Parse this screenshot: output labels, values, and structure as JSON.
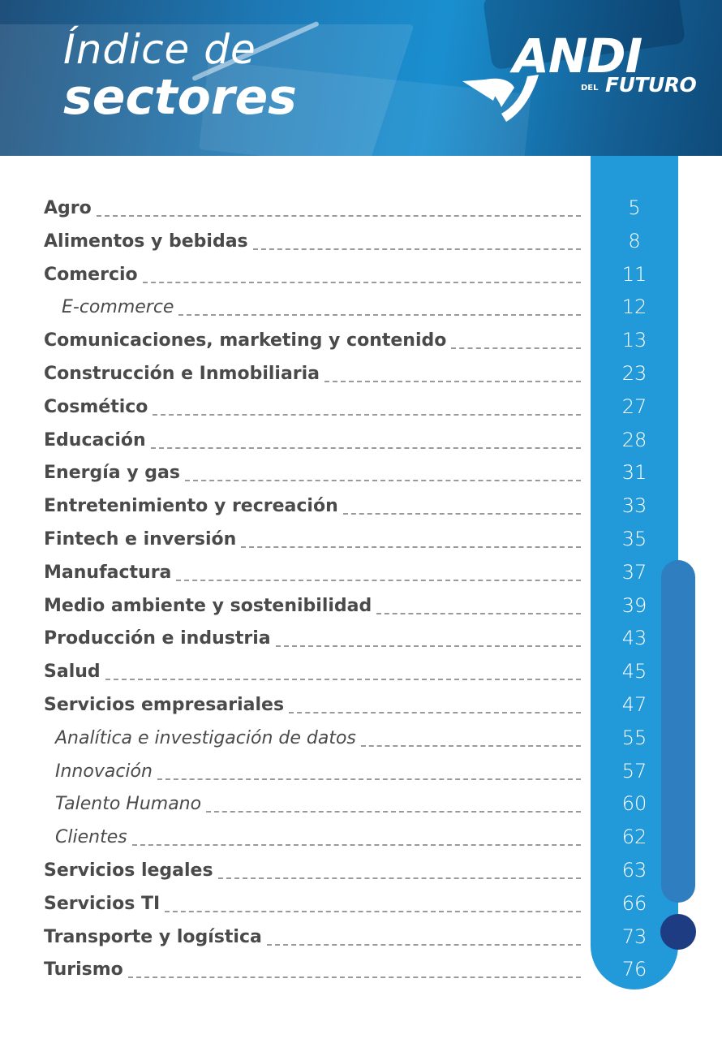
{
  "header": {
    "title_line1": "Índice de",
    "title_line2": "sectores",
    "logo": {
      "andi": "ANDI",
      "del": "DEL",
      "futuro": "FUTURO"
    }
  },
  "colors": {
    "column_blue": "#2299d8",
    "accent_blue": "#2f7ec0",
    "dot_navy": "#1e3c82",
    "text_gray": "#4a4a4a"
  },
  "entries": [
    {
      "label": "Agro",
      "page": "5",
      "sub": false
    },
    {
      "label": "Alimentos y bebidas",
      "page": "8",
      "sub": false
    },
    {
      "label": "Comercio",
      "page": "11",
      "sub": false
    },
    {
      "label": "E-commerce",
      "page": "12",
      "sub": true
    },
    {
      "label": "Comunicaciones, marketing y contenido",
      "page": "13",
      "sub": false
    },
    {
      "label": "Construcción e Inmobiliaria",
      "page": "23",
      "sub": false
    },
    {
      "label": "Cosmético",
      "page": "27",
      "sub": false
    },
    {
      "label": "Educación",
      "page": "28",
      "sub": false
    },
    {
      "label": "Energía y gas",
      "page": "31",
      "sub": false
    },
    {
      "label": "Entretenimiento y recreación",
      "page": "33",
      "sub": false
    },
    {
      "label": "Fintech e inversión",
      "page": "35",
      "sub": false
    },
    {
      "label": "Manufactura",
      "page": "37",
      "sub": false
    },
    {
      "label": "Medio ambiente y sostenibilidad",
      "page": "39",
      "sub": false
    },
    {
      "label": "Producción e industria",
      "page": "43",
      "sub": false
    },
    {
      "label": "Salud",
      "page": "45",
      "sub": false
    },
    {
      "label": "Servicios empresariales",
      "page": "47",
      "sub": false
    },
    {
      "label": "Analítica e investigación de datos",
      "page": "55",
      "sub": true
    },
    {
      "label": "Innovación",
      "page": "57",
      "sub": true
    },
    {
      "label": "Talento Humano",
      "page": "60",
      "sub": true
    },
    {
      "label": "Clientes",
      "page": "62",
      "sub": true
    },
    {
      "label": "Servicios legales",
      "page": "63",
      "sub": false
    },
    {
      "label": "Servicios TI",
      "page": "66",
      "sub": false
    },
    {
      "label": "Transporte y logística",
      "page": "73",
      "sub": false
    },
    {
      "label": "Turismo",
      "page": "76",
      "sub": false
    }
  ]
}
